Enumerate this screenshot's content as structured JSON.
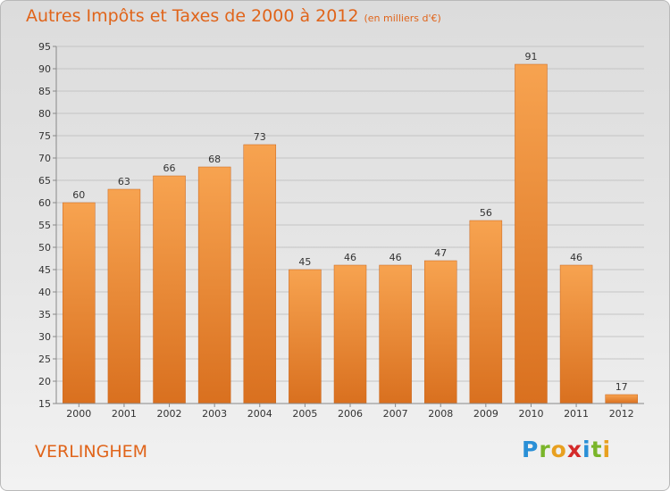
{
  "header": {
    "title": "Autres Impôts et Taxes de 2000 à 2012",
    "subtitle": "(en milliers d'€)"
  },
  "commune": "VERLINGHEM",
  "logo": {
    "letters": [
      "P",
      "r",
      "o",
      "x",
      "i",
      "t",
      "i"
    ],
    "colors": [
      "#2a8fd6",
      "#7ab52a",
      "#e8a020",
      "#d42a2a",
      "#2a8fd6",
      "#7ab52a",
      "#e8a020"
    ]
  },
  "colors": {
    "bar_top": "#f7a350",
    "bar_bottom": "#d9701f",
    "title": "#e0641a"
  },
  "chart_data": {
    "type": "bar",
    "categories": [
      "2000",
      "2001",
      "2002",
      "2003",
      "2004",
      "2005",
      "2006",
      "2007",
      "2008",
      "2009",
      "2010",
      "2011",
      "2012"
    ],
    "values": [
      60,
      63,
      66,
      68,
      73,
      45,
      46,
      46,
      47,
      56,
      91,
      46,
      17
    ],
    "ylim": [
      15,
      95
    ],
    "yticks": [
      15,
      20,
      25,
      30,
      35,
      40,
      45,
      50,
      55,
      60,
      65,
      70,
      75,
      80,
      85,
      90,
      95
    ],
    "grid": true,
    "data_labels": true
  }
}
